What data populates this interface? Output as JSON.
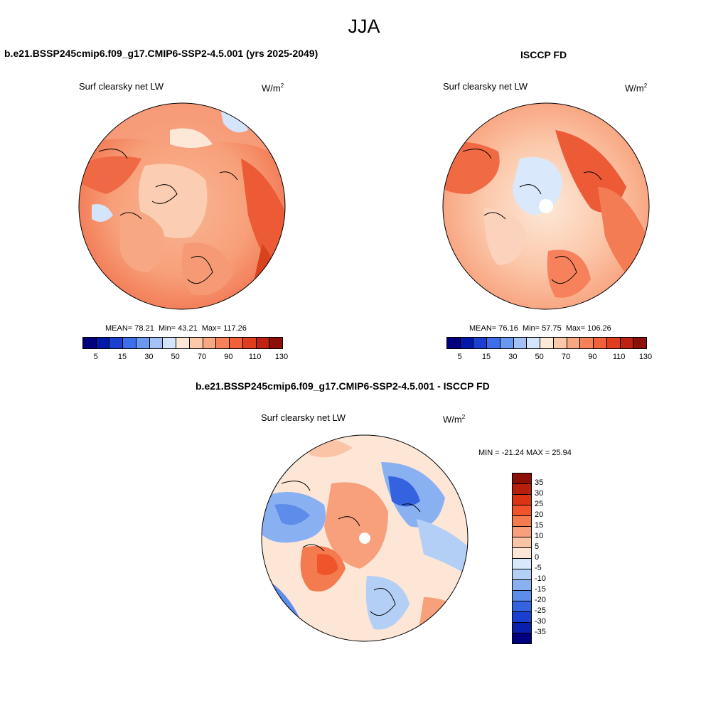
{
  "figure": {
    "season": "JJA"
  },
  "panel_model": {
    "title": "b.e21.BSSP245cmip6.f09_g17.CMIP6-SSP2-4.5.001 (yrs 2025-2049)",
    "variable": "Surf clearsky net LW",
    "units": "W/m",
    "units_exp": "2",
    "stats": {
      "mean_label": "MEAN=",
      "mean": "78.21",
      "min_label": "Min=",
      "min": "43.21",
      "max_label": "Max=",
      "max": "117.26"
    }
  },
  "panel_obs": {
    "title": "ISCCP FD",
    "variable": "Surf clearsky net LW",
    "units": "W/m",
    "units_exp": "2",
    "stats": {
      "mean_label": "MEAN=",
      "mean": "76.16",
      "min_label": "Min=",
      "min": "57.75",
      "max_label": "Max=",
      "max": "106.26"
    }
  },
  "panel_diff": {
    "title": "b.e21.BSSP245cmip6.f09_g17.CMIP6-SSP2-4.5.001 - ISCCP FD",
    "variable": "Surf clearsky net LW",
    "units": "W/m",
    "units_exp": "2",
    "minmax": "MIN = -21.24 MAX =  25.94"
  },
  "colorbar_abs": {
    "labels": [
      "5",
      "15",
      "30",
      "50",
      "70",
      "90",
      "110",
      "130"
    ],
    "colors": [
      "#00007f",
      "#0019a8",
      "#1a3fd1",
      "#3b6ee8",
      "#6a98f0",
      "#a3c1f4",
      "#d4e4fa",
      "#fde8d8",
      "#fbc8aa",
      "#f8a783",
      "#f6815b",
      "#f0603a",
      "#e03c1e",
      "#bf2211",
      "#8c0f08"
    ]
  },
  "colorbar_diff": {
    "labels": [
      "35",
      "30",
      "25",
      "20",
      "15",
      "10",
      "5",
      "0",
      "-5",
      "-10",
      "-15",
      "-20",
      "-25",
      "-30",
      "-35"
    ],
    "colors": [
      "#8c0f08",
      "#b51f0c",
      "#d93414",
      "#f0542a",
      "#f47a4f",
      "#f8a07c",
      "#fbc4a7",
      "#fde6d6",
      "#d9e8fb",
      "#b3cff6",
      "#89b1f2",
      "#5d8ceb",
      "#3563e0",
      "#1a3fd1",
      "#0a1fab",
      "#00007f"
    ]
  },
  "chart_data": [
    {
      "type": "heatmap",
      "title": "b.e21.BSSP245cmip6.f09_g17.CMIP6-SSP2-4.5.001 (yrs 2025-2049)",
      "projection": "north polar stereographic",
      "field": "Surf clearsky net LW",
      "units": "W/m2",
      "mean": 78.21,
      "min": 43.21,
      "max": 117.26
    },
    {
      "type": "heatmap",
      "title": "ISCCP FD",
      "projection": "north polar stereographic",
      "field": "Surf clearsky net LW",
      "units": "W/m2",
      "mean": 76.16,
      "min": 57.75,
      "max": 106.26
    },
    {
      "type": "heatmap",
      "title": "b.e21.BSSP245cmip6.f09_g17.CMIP6-SSP2-4.5.001 - ISCCP FD",
      "projection": "north polar stereographic",
      "field": "Surf clearsky net LW",
      "units": "W/m2",
      "min": -21.24,
      "max": 25.94
    }
  ]
}
